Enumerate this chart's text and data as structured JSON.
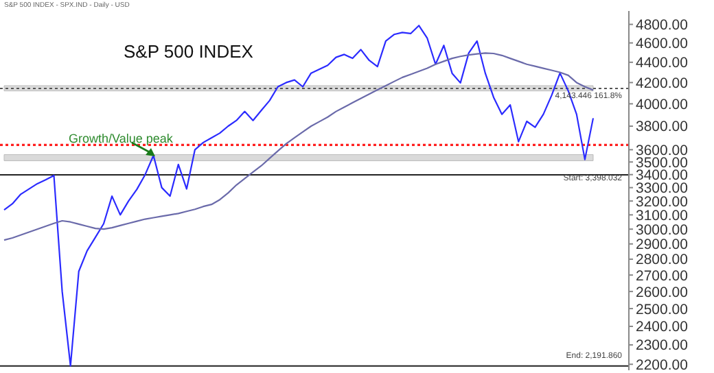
{
  "chart_data": {
    "type": "line",
    "title": "S&P 500 INDEX",
    "subtitle": "S&P 500 INDEX - SPX.IND - Daily - USD",
    "annotations": [
      "Growth/Value peak"
    ],
    "categories": [
      null,
      null,
      null,
      null,
      null,
      null,
      null,
      null,
      null,
      null,
      null,
      null,
      null,
      null,
      null,
      null,
      null,
      null,
      null,
      null,
      null,
      null,
      null,
      null,
      null,
      null,
      null,
      null,
      null,
      null,
      null,
      null,
      null,
      null,
      null,
      null,
      null,
      null,
      null,
      null,
      null,
      null,
      null,
      null,
      null,
      null,
      null,
      null,
      null,
      null,
      null,
      null,
      null,
      null,
      null,
      null,
      null,
      null,
      null,
      null,
      null,
      null,
      null,
      null,
      null,
      null,
      null,
      null,
      null,
      null,
      null,
      null
    ],
    "series": [
      {
        "color": "#2b2bff",
        "values": [
          3135,
          3180,
          3250,
          3290,
          3330,
          3360,
          3393,
          2600,
          2192,
          2723,
          2854,
          2944,
          3038,
          3236,
          3100,
          3200,
          3287,
          3400,
          3553,
          3300,
          3236,
          3480,
          3290,
          3600,
          3660,
          3700,
          3740,
          3800,
          3850,
          3930,
          3850,
          3940,
          4030,
          4160,
          4200,
          4225,
          4160,
          4292,
          4330,
          4370,
          4450,
          4480,
          4440,
          4530,
          4420,
          4357,
          4620,
          4690,
          4712,
          4700,
          4787,
          4650,
          4380,
          4574,
          4290,
          4197,
          4494,
          4620,
          4290,
          4060,
          3905,
          3990,
          3667,
          3842,
          3790,
          3905,
          4080,
          4292,
          4120,
          3905,
          3520,
          3870
        ]
      },
      {
        "color": "#6a6aaa",
        "values": [
          2926,
          2940,
          2960,
          2980,
          3000,
          3020,
          3040,
          3058,
          3050,
          3035,
          3020,
          3005,
          3000,
          3010,
          3025,
          3040,
          3055,
          3070,
          3080,
          3090,
          3100,
          3110,
          3125,
          3140,
          3160,
          3175,
          3210,
          3260,
          3320,
          3370,
          3420,
          3470,
          3530,
          3590,
          3650,
          3700,
          3750,
          3800,
          3840,
          3880,
          3930,
          3970,
          4010,
          4050,
          4090,
          4130,
          4170,
          4210,
          4250,
          4280,
          4310,
          4340,
          4380,
          4410,
          4440,
          4460,
          4475,
          4485,
          4494,
          4490,
          4470,
          4440,
          4410,
          4380,
          4360,
          4340,
          4320,
          4300,
          4270,
          4200,
          4160,
          4128
        ]
      }
    ],
    "log": "y",
    "ylim": [
      2170,
      4950
    ],
    "yticks": [
      {
        "value": 2200,
        "label": "2200.00"
      },
      {
        "value": 2300,
        "label": "2300.00"
      },
      {
        "value": 2400,
        "label": "2400.00"
      },
      {
        "value": 2500,
        "label": "2500.00"
      },
      {
        "value": 2600,
        "label": "2600.00"
      },
      {
        "value": 2700,
        "label": "2700.00"
      },
      {
        "value": 2800,
        "label": "2800.00"
      },
      {
        "value": 2900,
        "label": "2900.00"
      },
      {
        "value": 3000,
        "label": "3000.00"
      },
      {
        "value": 3100,
        "label": "3100.00"
      },
      {
        "value": 3200,
        "label": "3200.00"
      },
      {
        "value": 3300,
        "label": "3300.00"
      },
      {
        "value": 3400,
        "label": "3400.00"
      },
      {
        "value": 3500,
        "label": "3500.00"
      },
      {
        "value": 3600,
        "label": "3600.00"
      },
      {
        "value": 3800,
        "label": "3800.00"
      },
      {
        "value": 4000,
        "label": "4000.00"
      },
      {
        "value": 4200,
        "label": "4200.00"
      },
      {
        "value": 4400,
        "label": "4400.00"
      },
      {
        "value": 4600,
        "label": "4600.00"
      },
      {
        "value": 4800,
        "label": "4800.00"
      }
    ],
    "tick_labels": "y",
    "grid": false,
    "legend": false,
    "marker": "none",
    "line_style": "solid",
    "ref_lines": [
      {
        "axis": "y",
        "value": 4143.446,
        "label": "4,143.446   161.8%",
        "color": "#555555",
        "line_style": "dotted"
      },
      {
        "axis": "y",
        "value": 3398.032,
        "label": "Start:   3,398.032",
        "color": "#222222",
        "line_style": "solid"
      },
      {
        "axis": "y",
        "value": 2191.86,
        "label": "End:   2,191.860",
        "color": "#222222",
        "line_style": "solid"
      },
      {
        "axis": "y",
        "value": 3640,
        "color": "#ff2020",
        "line_style": "dotted"
      }
    ],
    "bands": [
      {
        "axis": "y",
        "from": 4120,
        "to": 4170,
        "color": "#d6d6d6"
      },
      {
        "axis": "y",
        "from": 3510,
        "to": 3560,
        "color": "#d6d6d6"
      }
    ]
  }
}
